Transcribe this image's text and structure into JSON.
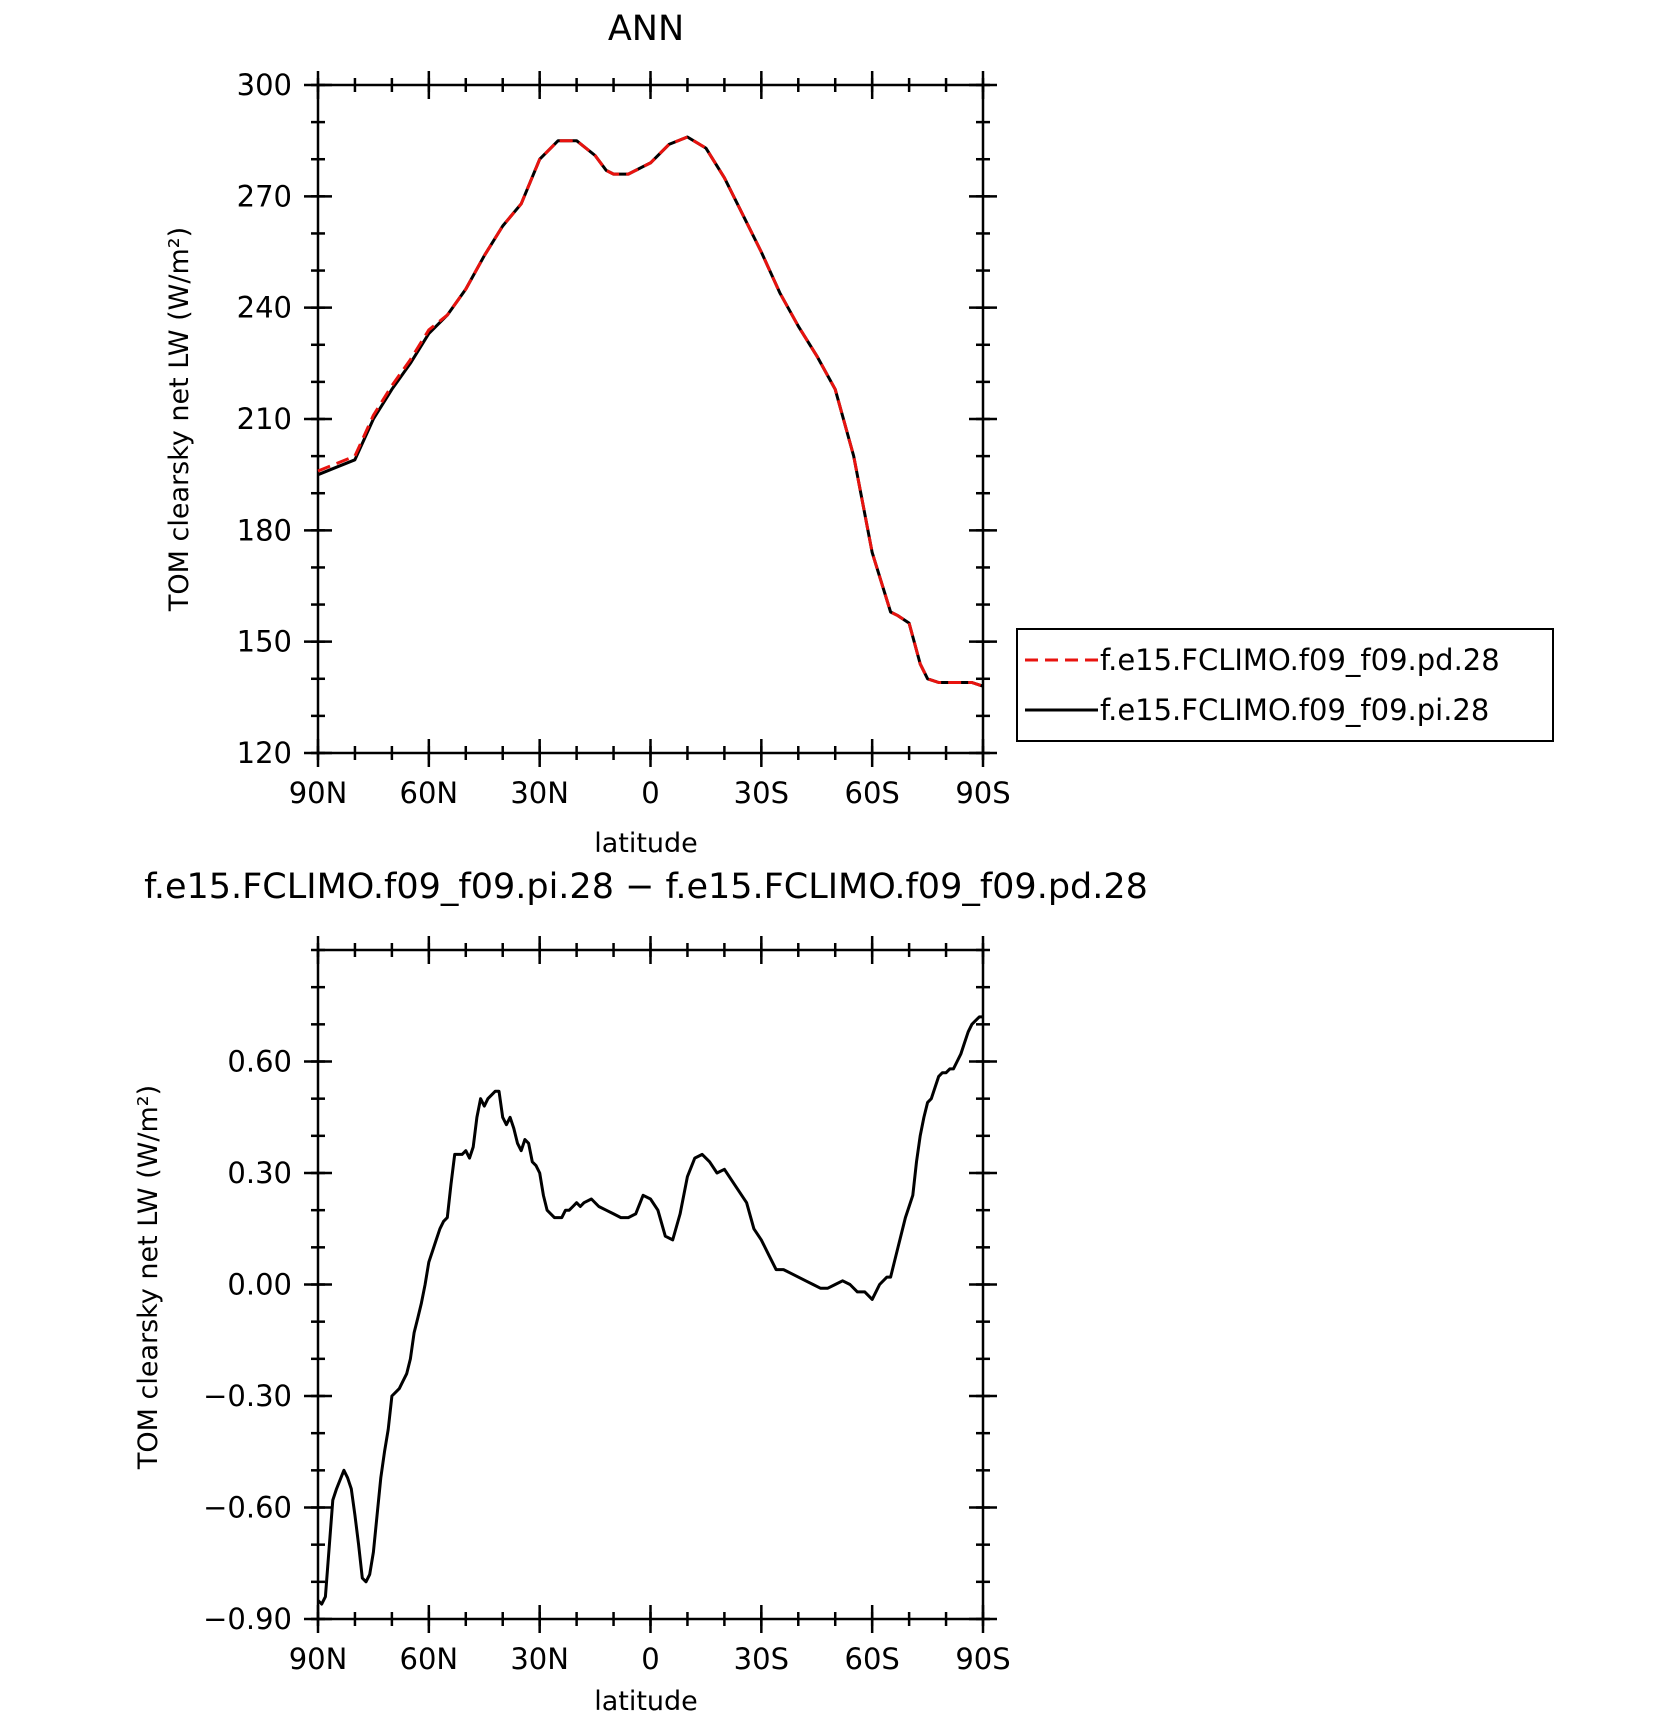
{
  "chart_data": [
    {
      "type": "line",
      "title": "ANN",
      "xlabel": "latitude",
      "ylabel": "TOM clearsky net LW (W/m²)",
      "xlim": [
        90,
        -90
      ],
      "ylim": [
        120,
        300
      ],
      "xticks": [
        90,
        60,
        30,
        0,
        -30,
        -60,
        -90
      ],
      "xtick_labels": [
        "90N",
        "60N",
        "30N",
        "0",
        "30S",
        "60S",
        "90S"
      ],
      "yticks": [
        120,
        150,
        180,
        210,
        240,
        270,
        300
      ],
      "ytick_labels": [
        "120",
        "150",
        "180",
        "210",
        "240",
        "270",
        "300"
      ],
      "legend_position": "right",
      "series": [
        {
          "name": "f.e15.FCLIMO.f09_f09.pd.28",
          "color": "#e8130f",
          "dash": "dashed",
          "x": [
            90,
            85,
            80,
            75,
            70,
            65,
            60,
            55,
            50,
            45,
            40,
            35,
            30,
            25,
            20,
            15,
            12,
            10,
            6,
            4,
            2,
            0,
            -5,
            -10,
            -15,
            -20,
            -25,
            -30,
            -35,
            -40,
            -45,
            -50,
            -55,
            -60,
            -65,
            -67,
            -70,
            -73,
            -75,
            -78,
            -81,
            -83,
            -85,
            -87,
            -90
          ],
          "y": [
            196,
            198,
            200,
            211,
            219,
            226,
            234,
            238,
            245,
            254,
            262,
            268,
            280,
            285,
            285,
            281,
            277,
            276,
            276,
            277,
            278,
            279,
            284,
            286,
            283,
            275,
            265,
            255,
            244,
            235,
            227,
            218,
            200,
            174,
            158,
            157,
            155,
            144,
            140,
            139,
            139,
            139,
            139,
            139,
            138
          ]
        },
        {
          "name": "f.e15.FCLIMO.f09_f09.pi.28",
          "color": "#000000",
          "dash": "solid",
          "x": [
            90,
            85,
            80,
            75,
            70,
            65,
            60,
            55,
            50,
            45,
            40,
            35,
            30,
            25,
            20,
            15,
            12,
            10,
            6,
            4,
            2,
            0,
            -5,
            -10,
            -15,
            -20,
            -25,
            -30,
            -35,
            -40,
            -45,
            -50,
            -55,
            -60,
            -65,
            -67,
            -70,
            -73,
            -75,
            -78,
            -81,
            -83,
            -85,
            -87,
            -90
          ],
          "y": [
            195,
            197,
            199,
            210,
            218,
            225,
            233,
            238,
            245,
            254,
            262,
            268,
            280,
            285,
            285,
            281,
            277,
            276,
            276,
            277,
            278,
            279,
            284,
            286,
            283,
            275,
            265,
            255,
            244,
            235,
            227,
            218,
            200,
            174,
            158,
            157,
            155,
            144,
            140,
            139,
            139,
            139,
            139,
            139,
            138
          ]
        }
      ]
    },
    {
      "type": "line",
      "title": "f.e15.FCLIMO.f09_f09.pi.28 − f.e15.FCLIMO.f09_f09.pd.28",
      "xlabel": "latitude",
      "ylabel": "TOM clearsky net LW (W/m²)",
      "xlim": [
        90,
        -90
      ],
      "ylim": [
        -0.9,
        0.9
      ],
      "xticks": [
        90,
        60,
        30,
        0,
        -30,
        -60,
        -90
      ],
      "xtick_labels": [
        "90N",
        "60N",
        "30N",
        "0",
        "30S",
        "60S",
        "90S"
      ],
      "yticks": [
        -0.9,
        -0.6,
        -0.3,
        0.0,
        0.3,
        0.6
      ],
      "ytick_labels": [
        "−0.90",
        "−0.60",
        "−0.30",
        "0.00",
        "0.30",
        "0.60"
      ],
      "series": [
        {
          "color": "#000000",
          "dash": "solid",
          "x": [
            90,
            89,
            88,
            86,
            85,
            83,
            82,
            81,
            80,
            79,
            78,
            77,
            76,
            75,
            74,
            73,
            72,
            71,
            70,
            69,
            68,
            67,
            66,
            65,
            64,
            63,
            62,
            61,
            60,
            59,
            58,
            57,
            56,
            55,
            54,
            53,
            52,
            51,
            50,
            49,
            48,
            47,
            46,
            45,
            44,
            43,
            42,
            41,
            40,
            39,
            38,
            37,
            36,
            35,
            34,
            33,
            32,
            31,
            30,
            29,
            28,
            27,
            26,
            25,
            24,
            23,
            22,
            21,
            20,
            19,
            18,
            16,
            14,
            12,
            10,
            8,
            6,
            4,
            2,
            0,
            -2,
            -4,
            -6,
            -8,
            -10,
            -12,
            -14,
            -16,
            -18,
            -20,
            -22,
            -24,
            -26,
            -28,
            -30,
            -32,
            -34,
            -36,
            -38,
            -40,
            -42,
            -44,
            -46,
            -48,
            -50,
            -52,
            -54,
            -56,
            -58,
            -60,
            -62,
            -64,
            -65,
            -66,
            -67,
            -68,
            -69,
            -70,
            -71,
            -72,
            -73,
            -74,
            -75,
            -76,
            -77,
            -78,
            -79,
            -80,
            -81,
            -82,
            -83,
            -84,
            -85,
            -86,
            -87,
            -88,
            -89,
            -90
          ],
          "y": [
            -0.85,
            -0.86,
            -0.84,
            -0.58,
            -0.55,
            -0.5,
            -0.52,
            -0.55,
            -0.62,
            -0.7,
            -0.79,
            -0.8,
            -0.78,
            -0.72,
            -0.62,
            -0.52,
            -0.45,
            -0.39,
            -0.3,
            -0.29,
            -0.28,
            -0.26,
            -0.24,
            -0.2,
            -0.13,
            -0.09,
            -0.05,
            0.0,
            0.06,
            0.09,
            0.12,
            0.15,
            0.17,
            0.18,
            0.27,
            0.35,
            0.35,
            0.35,
            0.36,
            0.34,
            0.37,
            0.45,
            0.5,
            0.48,
            0.5,
            0.51,
            0.52,
            0.52,
            0.45,
            0.43,
            0.45,
            0.42,
            0.38,
            0.36,
            0.39,
            0.38,
            0.33,
            0.32,
            0.3,
            0.24,
            0.2,
            0.19,
            0.18,
            0.18,
            0.18,
            0.2,
            0.2,
            0.21,
            0.22,
            0.21,
            0.22,
            0.23,
            0.21,
            0.2,
            0.19,
            0.18,
            0.18,
            0.19,
            0.24,
            0.23,
            0.2,
            0.13,
            0.12,
            0.19,
            0.29,
            0.34,
            0.35,
            0.33,
            0.3,
            0.31,
            0.28,
            0.25,
            0.22,
            0.15,
            0.12,
            0.08,
            0.04,
            0.04,
            0.03,
            0.02,
            0.01,
            0.0,
            -0.01,
            -0.01,
            0.0,
            0.01,
            0.0,
            -0.02,
            -0.02,
            -0.04,
            0.0,
            0.02,
            0.02,
            0.06,
            0.1,
            0.14,
            0.18,
            0.21,
            0.24,
            0.33,
            0.4,
            0.45,
            0.49,
            0.5,
            0.53,
            0.56,
            0.57,
            0.57,
            0.58,
            0.58,
            0.6,
            0.62,
            0.65,
            0.68,
            0.7,
            0.71,
            0.72,
            0.72
          ]
        }
      ]
    }
  ]
}
